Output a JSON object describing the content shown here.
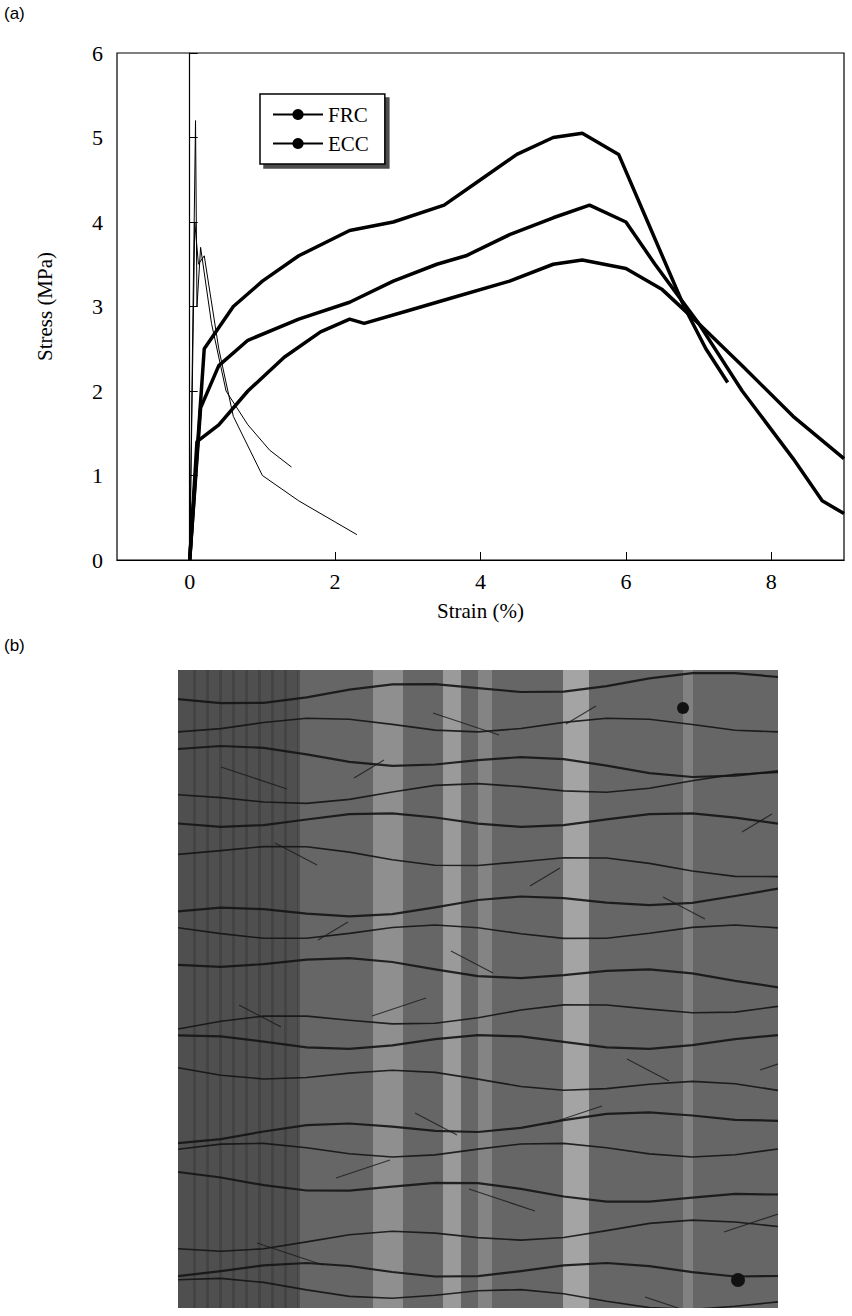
{
  "figure": {
    "panels": [
      "(a)",
      "(b)"
    ]
  },
  "chart_data": {
    "type": "line",
    "x_label": "Strain (%)",
    "y_label": "Stress (MPa)",
    "xlim": [
      -1,
      9
    ],
    "xticks": [
      0,
      2,
      4,
      6,
      8
    ],
    "ylim": [
      0,
      6
    ],
    "yticks": [
      0,
      1,
      2,
      3,
      4,
      5,
      6
    ],
    "grid": false,
    "legend": "top-left",
    "series": [
      {
        "name": "FRC",
        "color": "#000000",
        "line_style": "thin",
        "marker": "none",
        "x": [
          0,
          0.08,
          0.1,
          0.15,
          0.3,
          0.5,
          0.8,
          1.1,
          1.4
        ],
        "values": [
          0,
          5.2,
          3.0,
          3.7,
          2.8,
          2.0,
          1.6,
          1.3,
          1.1
        ]
      },
      {
        "name": "FRC",
        "color": "#000000",
        "line_style": "thin",
        "marker": "none",
        "x": [
          0,
          0.07,
          0.12,
          0.2,
          0.4,
          0.6,
          1.0,
          1.5,
          2.0,
          2.3
        ],
        "values": [
          0,
          4.0,
          3.5,
          3.6,
          2.5,
          1.7,
          1.0,
          0.7,
          0.45,
          0.3
        ]
      },
      {
        "name": "ECC",
        "color": "#000000",
        "line_style": "thick",
        "marker": "none",
        "x": [
          0,
          0.2,
          0.6,
          1.0,
          1.5,
          2.2,
          2.8,
          3.5,
          4.0,
          4.5,
          5.0,
          5.4,
          5.9,
          6.3,
          6.8,
          7.1,
          7.4
        ],
        "values": [
          0,
          2.5,
          3.0,
          3.3,
          3.6,
          3.9,
          4.0,
          4.2,
          4.5,
          4.8,
          5.0,
          5.05,
          4.8,
          4.0,
          3.0,
          2.5,
          2.1
        ]
      },
      {
        "name": "ECC",
        "color": "#000000",
        "line_style": "thick",
        "marker": "none",
        "x": [
          0,
          0.15,
          0.4,
          0.8,
          1.5,
          2.2,
          2.8,
          3.4,
          3.8,
          4.4,
          5.0,
          5.5,
          6.0,
          6.4,
          7.0,
          7.6,
          8.3,
          8.7,
          9.0
        ],
        "values": [
          0,
          1.8,
          2.3,
          2.6,
          2.85,
          3.05,
          3.3,
          3.5,
          3.6,
          3.85,
          4.05,
          4.2,
          4.0,
          3.5,
          2.8,
          2.0,
          1.2,
          0.7,
          0.55
        ]
      },
      {
        "name": "ECC",
        "color": "#000000",
        "line_style": "thick",
        "marker": "none",
        "x": [
          0,
          0.1,
          0.4,
          0.8,
          1.3,
          1.8,
          2.2,
          2.4,
          3.0,
          3.6,
          4.4,
          5.0,
          5.4,
          6.0,
          6.5,
          7.0,
          7.6,
          8.3,
          9.0
        ],
        "values": [
          0,
          1.4,
          1.6,
          2.0,
          2.4,
          2.7,
          2.85,
          2.8,
          2.95,
          3.1,
          3.3,
          3.5,
          3.55,
          3.45,
          3.2,
          2.8,
          2.3,
          1.7,
          1.2
        ]
      }
    ]
  }
}
